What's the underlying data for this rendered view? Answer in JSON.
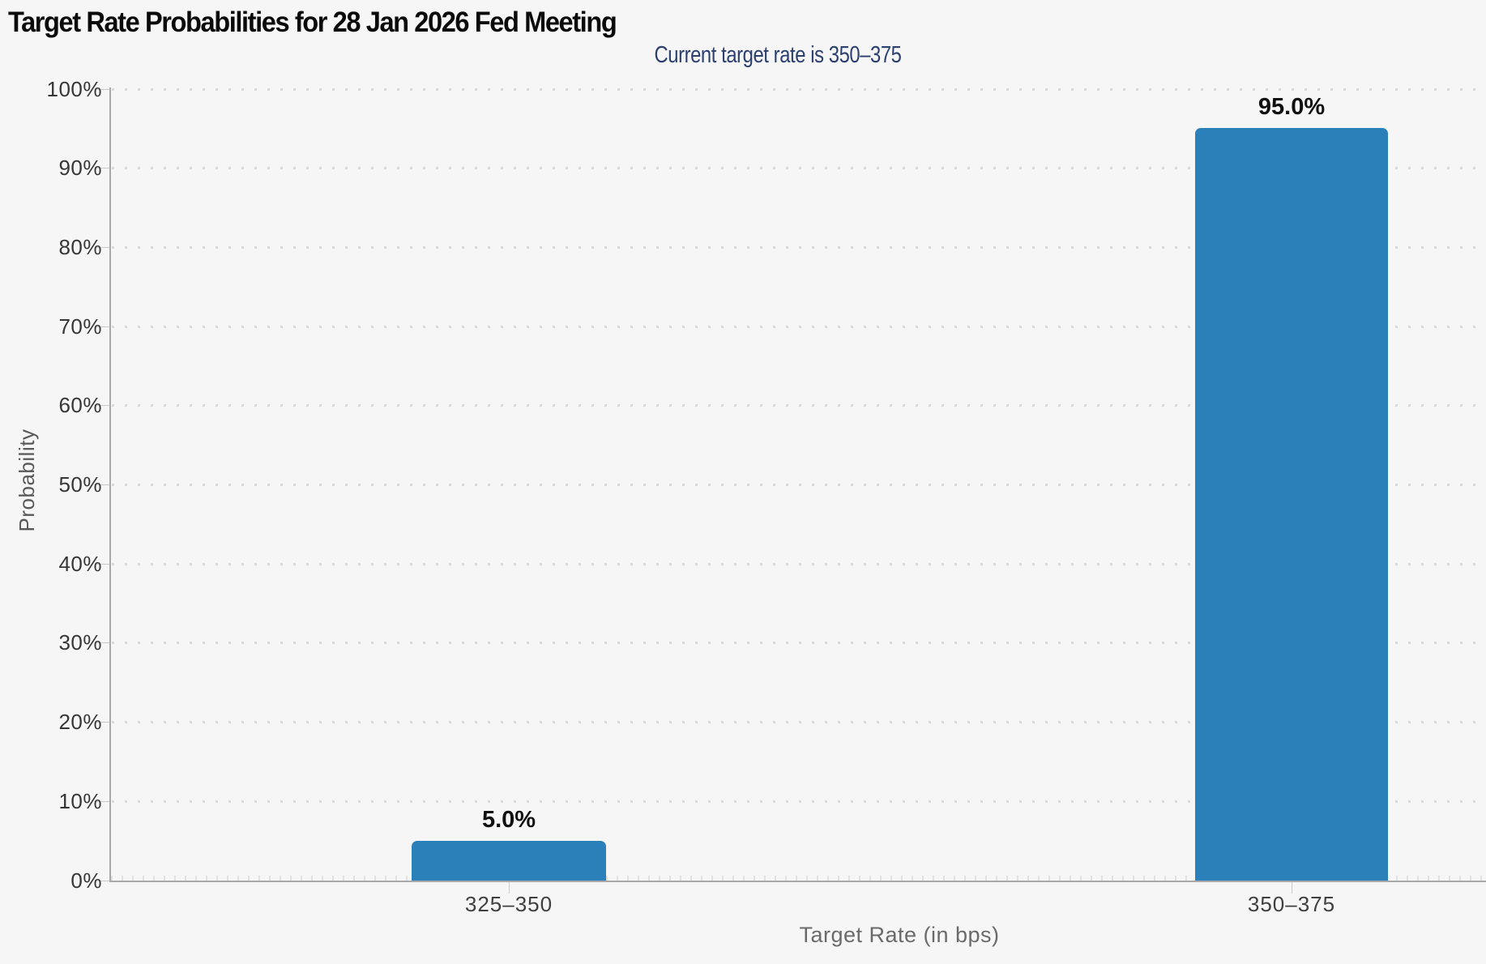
{
  "chart_data": {
    "type": "bar",
    "title": "Target Rate Probabilities for 28 Jan 2026 Fed Meeting",
    "subtitle": "Current target rate is 350–375",
    "categories": [
      "325–350",
      "350–375"
    ],
    "values": [
      5.0,
      95.0
    ],
    "data_labels": [
      "5.0%",
      "95.0%"
    ],
    "xlabel": "Target Rate (in bps)",
    "ylabel": "Probability",
    "ylim": [
      0,
      100
    ],
    "ytick_step": 10,
    "ytick_labels": [
      "0%",
      "10%",
      "20%",
      "30%",
      "40%",
      "50%",
      "60%",
      "70%",
      "80%",
      "90%",
      "100%"
    ],
    "grid": "horizontal-dotted",
    "legend": "none",
    "bar_color": "#2b80b9",
    "background_color": "#f6f6f6",
    "subtitle_color": "#2b406f"
  }
}
